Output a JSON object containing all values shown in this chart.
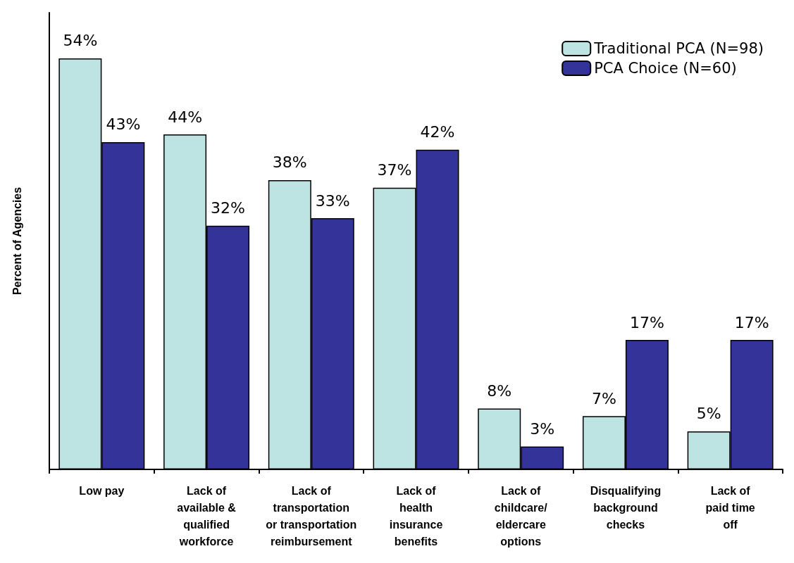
{
  "chart_data": {
    "type": "bar",
    "ylabel": "Percent of Agencies",
    "categories": [
      "Low pay",
      "Lack of\navailable &\nqualified\nworkforce",
      "Lack of\ntransportation\nor transportation\nreimbursement",
      "Lack of\nhealth\ninsurance\nbenefits",
      "Lack of\nchildcare/\neldercare\noptions",
      "Disqualifying\nbackground\nchecks",
      "Lack of\npaid time\noff"
    ],
    "series": [
      {
        "name": "Traditional PCA (N=98)",
        "color": "#bde3e3",
        "values": [
          54,
          44,
          38,
          37,
          8,
          7,
          5
        ],
        "value_labels": [
          "54%",
          "44%",
          "38%",
          "37%",
          "8%",
          "7%",
          "5%"
        ]
      },
      {
        "name": "PCA Choice (N=60)",
        "color": "#333399",
        "values": [
          43,
          32,
          33,
          42,
          3,
          17,
          17
        ],
        "value_labels": [
          "43%",
          "32%",
          "33%",
          "42%",
          "3%",
          "17%",
          "17%"
        ]
      }
    ],
    "legend": "top right"
  }
}
